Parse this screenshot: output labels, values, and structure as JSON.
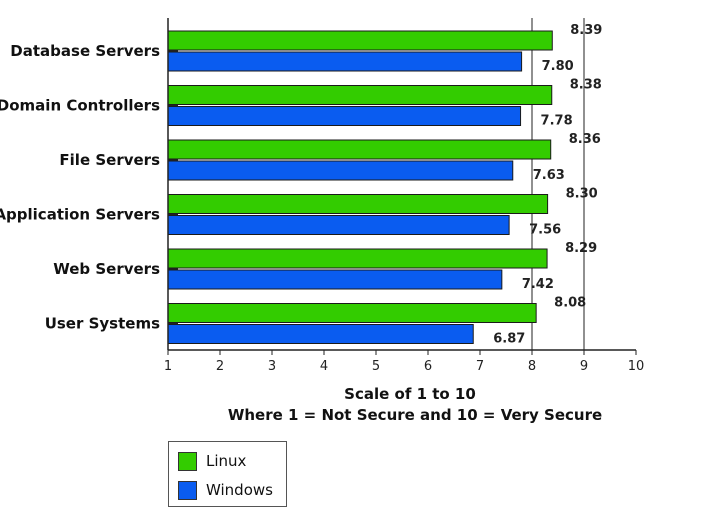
{
  "chart_data": {
    "type": "bar",
    "orientation": "horizontal",
    "categories": [
      "Database Servers",
      "Domain Controllers",
      "File Servers",
      "Application Servers",
      "Web Servers",
      "User Systems"
    ],
    "series": [
      {
        "name": "Linux",
        "color": "#33cc00",
        "values": [
          8.39,
          8.38,
          8.36,
          8.3,
          8.29,
          8.08
        ],
        "labels": [
          "8.39",
          "8.38",
          "8.36",
          "8.30",
          "8.29",
          "8.08"
        ]
      },
      {
        "name": "Windows",
        "color": "#0a5cf0",
        "values": [
          7.8,
          7.78,
          7.63,
          7.56,
          7.42,
          6.87
        ],
        "labels": [
          "7.80",
          "7.78",
          "7.63",
          "7.56",
          "7.42",
          "6.87"
        ]
      }
    ],
    "xlim": [
      1,
      10
    ],
    "xticks": [
      "1",
      "2",
      "3",
      "4",
      "5",
      "6",
      "7",
      "8",
      "9",
      "10"
    ],
    "xlabel_line1": "Scale of 1 to 10",
    "xlabel_line2": "Where 1 = Not Secure and 10 = Very Secure",
    "grid": "vertical at 8 and 9",
    "legend_position": "bottom-left"
  }
}
